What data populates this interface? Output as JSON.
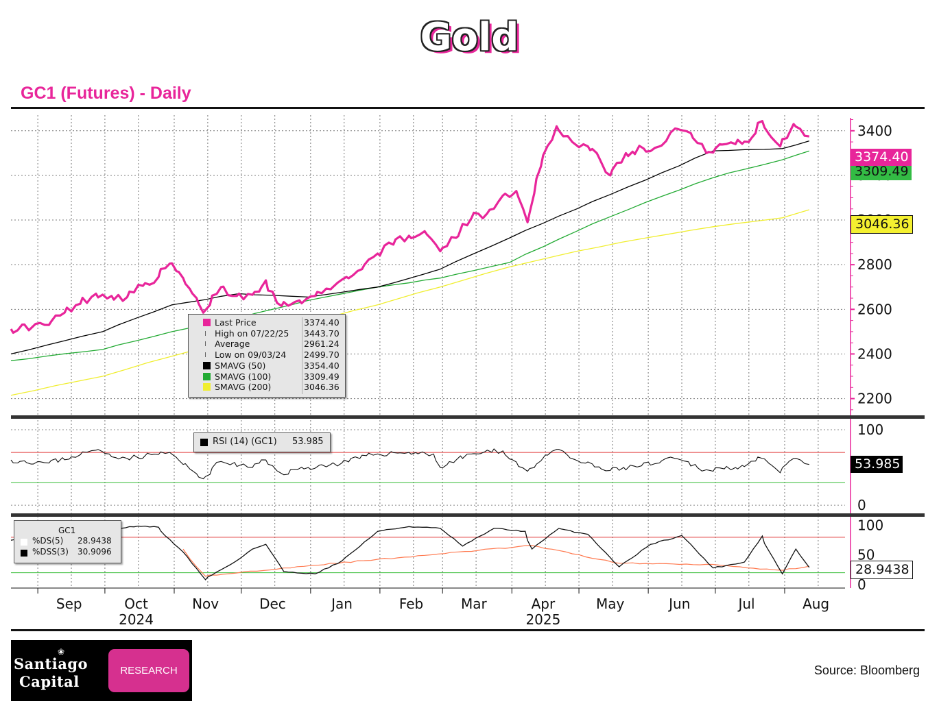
{
  "title": "Gold",
  "subtitle": "GC1 (Futures) - Daily",
  "colors": {
    "accent": "#e8259a",
    "sma50": "#000000",
    "sma100": "#22aa33",
    "sma200": "#f0ee30",
    "rsi_upper": "#e23b3b",
    "rsi_lower": "#33bb33"
  },
  "price_legend": {
    "rows": [
      {
        "label": "Last Price",
        "value": "3374.40",
        "swatch": "#e8259a"
      },
      {
        "label": "High on 07/22/25",
        "value": "3443.70",
        "swatch": ""
      },
      {
        "label": "Average",
        "value": "2961.24",
        "swatch": ""
      },
      {
        "label": "Low on 09/03/24",
        "value": "2499.70",
        "swatch": ""
      },
      {
        "label": "SMAVG (50)",
        "value": "3354.40",
        "swatch": "#000000"
      },
      {
        "label": "SMAVG (100)",
        "value": "3309.49",
        "swatch": "#22aa33"
      },
      {
        "label": "SMAVG (200)",
        "value": "3046.36",
        "swatch": "#f0ee30"
      }
    ]
  },
  "rsi_legend": {
    "label": "RSI (14) (GC1)",
    "value": "53.985"
  },
  "stoch_legend": {
    "title": "GC1",
    "rows": [
      {
        "label": "%DS(5)",
        "value": "28.9438"
      },
      {
        "label": "%DSS(3)",
        "value": "30.9096"
      }
    ]
  },
  "tags": {
    "last": "3374.40",
    "sma100": "3309.49",
    "sma200": "3046.36",
    "rsi": "53.985",
    "stoch": "28.9438",
    "sma100_partial": "3309.49"
  },
  "footer": {
    "source": "Source: Bloomberg",
    "logo_line1": "Santiago",
    "logo_line2": "Capital",
    "logo_badge": "RESEARCH"
  },
  "chart_data": [
    {
      "type": "line",
      "title": "GC1 (Futures) - Daily",
      "x_months": [
        "Sep",
        "Oct",
        "Nov",
        "Dec",
        "Jan",
        "Feb",
        "Mar",
        "Apr",
        "May",
        "Jun",
        "Jul",
        "Aug"
      ],
      "x_years": [
        {
          "label": "2024",
          "at_month": "Oct"
        },
        {
          "label": "2025",
          "at_month": "Apr"
        }
      ],
      "x_range": [
        "2024-08-20",
        "2025-08-12"
      ],
      "y_ticks": [
        2200,
        2400,
        2600,
        2800,
        3000,
        3200,
        3400
      ],
      "ylim": [
        2125,
        3470
      ],
      "grid": true,
      "series": [
        {
          "name": "Last Price",
          "color": "#e8259a",
          "points": [
            [
              "2024-08-20",
              2512
            ],
            [
              "2024-08-30",
              2525
            ],
            [
              "2024-09-06",
              2530
            ],
            [
              "2024-09-13",
              2585
            ],
            [
              "2024-09-20",
              2625
            ],
            [
              "2024-09-27",
              2670
            ],
            [
              "2024-10-04",
              2660
            ],
            [
              "2024-10-11",
              2655
            ],
            [
              "2024-10-18",
              2705
            ],
            [
              "2024-10-25",
              2745
            ],
            [
              "2024-10-30",
              2805
            ],
            [
              "2024-11-05",
              2740
            ],
            [
              "2024-11-14",
              2585
            ],
            [
              "2024-11-22",
              2700
            ],
            [
              "2024-11-29",
              2660
            ],
            [
              "2024-12-06",
              2665
            ],
            [
              "2024-12-12",
              2730
            ],
            [
              "2024-12-19",
              2615
            ],
            [
              "2024-12-27",
              2640
            ],
            [
              "2025-01-03",
              2660
            ],
            [
              "2025-01-10",
              2690
            ],
            [
              "2025-01-17",
              2745
            ],
            [
              "2025-01-24",
              2780
            ],
            [
              "2025-01-31",
              2850
            ],
            [
              "2025-02-07",
              2890
            ],
            [
              "2025-02-14",
              2930
            ],
            [
              "2025-02-21",
              2950
            ],
            [
              "2025-02-28",
              2860
            ],
            [
              "2025-03-07",
              2920
            ],
            [
              "2025-03-14",
              3010
            ],
            [
              "2025-03-21",
              3030
            ],
            [
              "2025-03-28",
              3110
            ],
            [
              "2025-04-03",
              3130
            ],
            [
              "2025-04-08",
              2990
            ],
            [
              "2025-04-14",
              3240
            ],
            [
              "2025-04-21",
              3420
            ],
            [
              "2025-04-28",
              3350
            ],
            [
              "2025-05-05",
              3330
            ],
            [
              "2025-05-09",
              3300
            ],
            [
              "2025-05-15",
              3200
            ],
            [
              "2025-05-22",
              3300
            ],
            [
              "2025-05-30",
              3320
            ],
            [
              "2025-06-06",
              3330
            ],
            [
              "2025-06-13",
              3410
            ],
            [
              "2025-06-20",
              3390
            ],
            [
              "2025-06-27",
              3300
            ],
            [
              "2025-07-03",
              3340
            ],
            [
              "2025-07-10",
              3340
            ],
            [
              "2025-07-16",
              3350
            ],
            [
              "2025-07-22",
              3443.7
            ],
            [
              "2025-07-30",
              3330
            ],
            [
              "2025-08-05",
              3430
            ],
            [
              "2025-08-12",
              3374.4
            ]
          ]
        },
        {
          "name": "SMAVG (50)",
          "color": "#000000",
          "points": [
            [
              "2024-08-20",
              2400
            ],
            [
              "2024-09-30",
              2500
            ],
            [
              "2024-10-31",
              2620
            ],
            [
              "2024-11-30",
              2670
            ],
            [
              "2024-12-31",
              2655
            ],
            [
              "2025-01-31",
              2700
            ],
            [
              "2025-02-28",
              2780
            ],
            [
              "2025-03-31",
              2920
            ],
            [
              "2025-04-30",
              3050
            ],
            [
              "2025-05-31",
              3180
            ],
            [
              "2025-06-30",
              3310
            ],
            [
              "2025-07-31",
              3320
            ],
            [
              "2025-08-12",
              3354.4
            ]
          ]
        },
        {
          "name": "SMAVG (100)",
          "color": "#22aa33",
          "points": [
            [
              "2024-08-20",
              2370
            ],
            [
              "2024-09-30",
              2420
            ],
            [
              "2024-10-31",
              2500
            ],
            [
              "2024-11-30",
              2560
            ],
            [
              "2024-12-31",
              2640
            ],
            [
              "2025-01-31",
              2700
            ],
            [
              "2025-02-28",
              2740
            ],
            [
              "2025-03-31",
              2810
            ],
            [
              "2025-04-30",
              2950
            ],
            [
              "2025-05-31",
              3080
            ],
            [
              "2025-06-30",
              3190
            ],
            [
              "2025-07-31",
              3270
            ],
            [
              "2025-08-12",
              3309.49
            ]
          ]
        },
        {
          "name": "SMAVG (200)",
          "color": "#f0ee30",
          "points": [
            [
              "2024-08-20",
              2215
            ],
            [
              "2024-09-30",
              2300
            ],
            [
              "2024-10-31",
              2390
            ],
            [
              "2024-11-30",
              2470
            ],
            [
              "2024-12-31",
              2540
            ],
            [
              "2025-01-31",
              2620
            ],
            [
              "2025-02-28",
              2700
            ],
            [
              "2025-03-31",
              2790
            ],
            [
              "2025-04-30",
              2860
            ],
            [
              "2025-05-31",
              2920
            ],
            [
              "2025-06-30",
              2970
            ],
            [
              "2025-07-31",
              3010
            ],
            [
              "2025-08-12",
              3046.36
            ]
          ]
        }
      ]
    },
    {
      "type": "line",
      "title": "RSI (14) (GC1)",
      "y_ticks": [
        0,
        100
      ],
      "ylim": [
        0,
        100
      ],
      "reference_lines": [
        70,
        30
      ],
      "series": [
        {
          "name": "RSI (14) (GC1)",
          "color": "#111111",
          "points": [
            [
              "2024-08-20",
              60
            ],
            [
              "2024-09-06",
              56
            ],
            [
              "2024-09-20",
              67
            ],
            [
              "2024-09-27",
              73
            ],
            [
              "2024-10-11",
              62
            ],
            [
              "2024-10-30",
              70
            ],
            [
              "2024-11-08",
              48
            ],
            [
              "2024-11-14",
              35
            ],
            [
              "2024-11-22",
              58
            ],
            [
              "2024-12-06",
              50
            ],
            [
              "2024-12-12",
              60
            ],
            [
              "2024-12-19",
              42
            ],
            [
              "2024-12-31",
              50
            ],
            [
              "2025-01-15",
              56
            ],
            [
              "2025-01-31",
              68
            ],
            [
              "2025-02-14",
              70
            ],
            [
              "2025-02-25",
              68
            ],
            [
              "2025-02-28",
              50
            ],
            [
              "2025-03-14",
              68
            ],
            [
              "2025-03-28",
              72
            ],
            [
              "2025-04-08",
              45
            ],
            [
              "2025-04-21",
              74
            ],
            [
              "2025-05-01",
              58
            ],
            [
              "2025-05-15",
              46
            ],
            [
              "2025-06-06",
              56
            ],
            [
              "2025-06-13",
              62
            ],
            [
              "2025-06-27",
              47
            ],
            [
              "2025-07-10",
              50
            ],
            [
              "2025-07-22",
              62
            ],
            [
              "2025-07-30",
              43
            ],
            [
              "2025-08-05",
              62
            ],
            [
              "2025-08-12",
              53.985
            ]
          ]
        }
      ]
    },
    {
      "type": "line",
      "title": "GC1",
      "y_ticks": [
        0,
        50,
        100
      ],
      "ylim": [
        0,
        100
      ],
      "reference_lines": [
        80,
        20
      ],
      "series": [
        {
          "name": "%DS(5)",
          "color": "#111111",
          "points": [
            [
              "2024-08-20",
              75
            ],
            [
              "2024-09-06",
              90
            ],
            [
              "2024-09-20",
              78
            ],
            [
              "2024-09-30",
              92
            ],
            [
              "2024-10-16",
              99
            ],
            [
              "2024-10-25",
              97
            ],
            [
              "2024-11-05",
              55
            ],
            [
              "2024-11-15",
              8
            ],
            [
              "2024-11-28",
              38
            ],
            [
              "2024-12-06",
              60
            ],
            [
              "2024-12-12",
              68
            ],
            [
              "2024-12-20",
              22
            ],
            [
              "2025-01-03",
              18
            ],
            [
              "2025-01-15",
              40
            ],
            [
              "2025-01-31",
              90
            ],
            [
              "2025-02-14",
              98
            ],
            [
              "2025-02-28",
              95
            ],
            [
              "2025-03-10",
              65
            ],
            [
              "2025-03-24",
              95
            ],
            [
              "2025-04-07",
              90
            ],
            [
              "2025-04-10",
              60
            ],
            [
              "2025-04-22",
              95
            ],
            [
              "2025-05-05",
              85
            ],
            [
              "2025-05-19",
              30
            ],
            [
              "2025-06-02",
              68
            ],
            [
              "2025-06-16",
              83
            ],
            [
              "2025-06-30",
              28
            ],
            [
              "2025-07-14",
              38
            ],
            [
              "2025-07-22",
              82
            ],
            [
              "2025-07-31",
              18
            ],
            [
              "2025-08-06",
              60
            ],
            [
              "2025-08-12",
              28.9438
            ]
          ]
        },
        {
          "name": "%DSS(3)",
          "color": "#ff7a50",
          "points": [
            [
              "2024-11-05",
              60
            ],
            [
              "2024-11-15",
              14
            ],
            [
              "2024-12-20",
              28
            ],
            [
              "2025-04-10",
              66
            ],
            [
              "2025-05-19",
              36
            ],
            [
              "2025-06-30",
              34
            ],
            [
              "2025-07-31",
              24
            ],
            [
              "2025-08-12",
              30.9096
            ]
          ]
        }
      ]
    }
  ]
}
